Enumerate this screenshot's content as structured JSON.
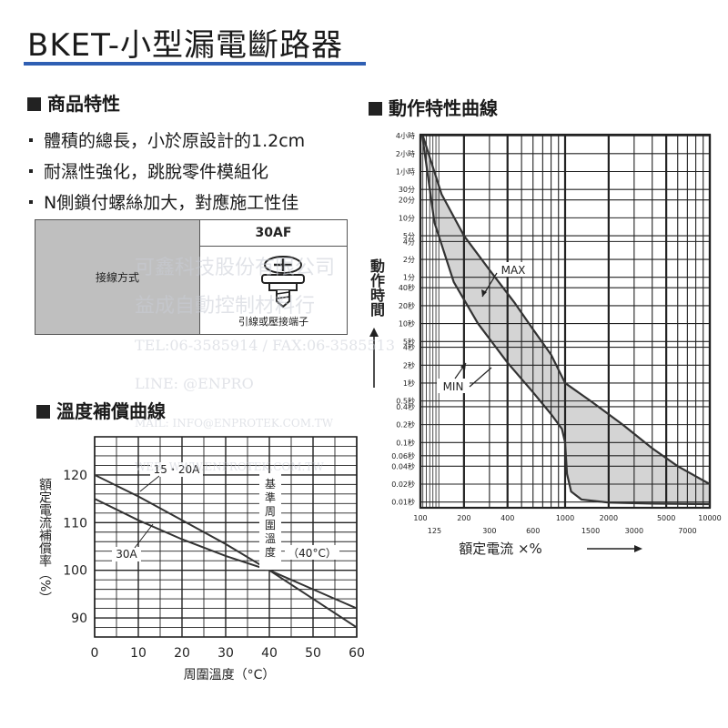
{
  "title": "BKET-小型漏電斷路器",
  "features_heading": "商品特性",
  "features": [
    "體積的總長，小於原設計的1.2cm",
    "耐濕性強化，跳脫零件模組化",
    "N側鎖付螺絲加大，對應施工性佳"
  ],
  "spec_table": {
    "row_label": "接線方式",
    "header": "30AF",
    "caption": "引線或壓接端子",
    "icon": "screw-terminal-icon"
  },
  "watermark": {
    "lines": [
      "可鑫科技股份有限公司",
      "益成自動控制材料行",
      "TEL:06-3585914 / FAX:06-3585513",
      "LINE: @ENPRO",
      "MAIL: INFO@ENPROTEK.COM.TW",
      "WEB: WWW.ENPROTEK.COM.TW"
    ]
  },
  "colors": {
    "accent_rule": "#2f5fb3",
    "band_fill": "#d4d4d4",
    "curve": "#333333",
    "grid": "#222222"
  },
  "chart_data": [
    {
      "type": "line",
      "title": "溫度補償曲線",
      "xlabel": "周圍溫度（°C）",
      "ylabel": "額定電流補償率（%）",
      "xlim": [
        0,
        60
      ],
      "ylim": [
        86,
        128
      ],
      "x_ticks": [
        "0",
        "10",
        "20",
        "30",
        "40",
        "50",
        "60"
      ],
      "y_ticks": [
        "90",
        "100",
        "110",
        "120"
      ],
      "grid": true,
      "series": [
        {
          "name": "15・20A",
          "x": [
            0,
            10,
            20,
            30,
            40,
            50,
            60
          ],
          "y": [
            120,
            115.5,
            110.5,
            105.5,
            100,
            94,
            88
          ]
        },
        {
          "name": "30A",
          "x": [
            0,
            10,
            20,
            30,
            40,
            50,
            60
          ],
          "y": [
            115,
            110.5,
            106.5,
            103,
            100,
            96,
            92
          ]
        }
      ],
      "annotations": {
        "reference_label": "基準周圍溫度",
        "reference_value": "（40°C）",
        "reference_x": 40
      }
    },
    {
      "type": "line",
      "title": "動作特性曲線",
      "xlabel": "額定電流 ×%",
      "ylabel": "動作時間",
      "x_scale": "log",
      "y_scale": "log",
      "xlim": [
        100,
        10000
      ],
      "y_unit": "seconds",
      "ylim": [
        0.008,
        15000
      ],
      "x_ticks_top": [
        "100",
        "200",
        "400",
        "1000",
        "2000",
        "5000",
        "10000"
      ],
      "x_ticks_bottom": [
        "125",
        "300",
        "600",
        "1500",
        "3000",
        "7000"
      ],
      "y_ticks": [
        {
          "label": "4小時",
          "value": 14400
        },
        {
          "label": "2小時",
          "value": 7200
        },
        {
          "label": "1小時",
          "value": 3600
        },
        {
          "label": "30分",
          "value": 1800
        },
        {
          "label": "20分",
          "value": 1200
        },
        {
          "label": "10分",
          "value": 600
        },
        {
          "label": "5分",
          "value": 300
        },
        {
          "label": "4分",
          "value": 240
        },
        {
          "label": "2分",
          "value": 120
        },
        {
          "label": "1分",
          "value": 60
        },
        {
          "label": "40秒",
          "value": 40
        },
        {
          "label": "20秒",
          "value": 20
        },
        {
          "label": "10秒",
          "value": 10
        },
        {
          "label": "5秒",
          "value": 5
        },
        {
          "label": "4秒",
          "value": 4
        },
        {
          "label": "2秒",
          "value": 2
        },
        {
          "label": "1秒",
          "value": 1
        },
        {
          "label": "0.5秒",
          "value": 0.5
        },
        {
          "label": "0.4秒",
          "value": 0.4
        },
        {
          "label": "0.2秒",
          "value": 0.2
        },
        {
          "label": "0.1秒",
          "value": 0.1
        },
        {
          "label": "0.06秒",
          "value": 0.06
        },
        {
          "label": "0.04秒",
          "value": 0.04
        },
        {
          "label": "0.02秒",
          "value": 0.02
        },
        {
          "label": "0.01秒",
          "value": 0.01
        }
      ],
      "grid": true,
      "series": [
        {
          "name": "MAX",
          "x": [
            104,
            140,
            200,
            300,
            450,
            600,
            800,
            1000,
            1500,
            2500,
            4000,
            6000,
            10000
          ],
          "y": [
            14400,
            1500,
            300,
            80,
            22,
            8,
            3,
            1,
            0.5,
            0.2,
            0.08,
            0.04,
            0.02
          ]
        },
        {
          "name": "MIN",
          "x": [
            103,
            125,
            170,
            250,
            400,
            600,
            800,
            950,
            1000,
            1030,
            1100,
            1300,
            2000,
            4000,
            10000
          ],
          "y": [
            14400,
            500,
            50,
            10,
            2.2,
            0.7,
            0.3,
            0.17,
            0.1,
            0.03,
            0.015,
            0.011,
            0.0098,
            0.0094,
            0.0092
          ]
        }
      ],
      "band_fill": true
    }
  ]
}
